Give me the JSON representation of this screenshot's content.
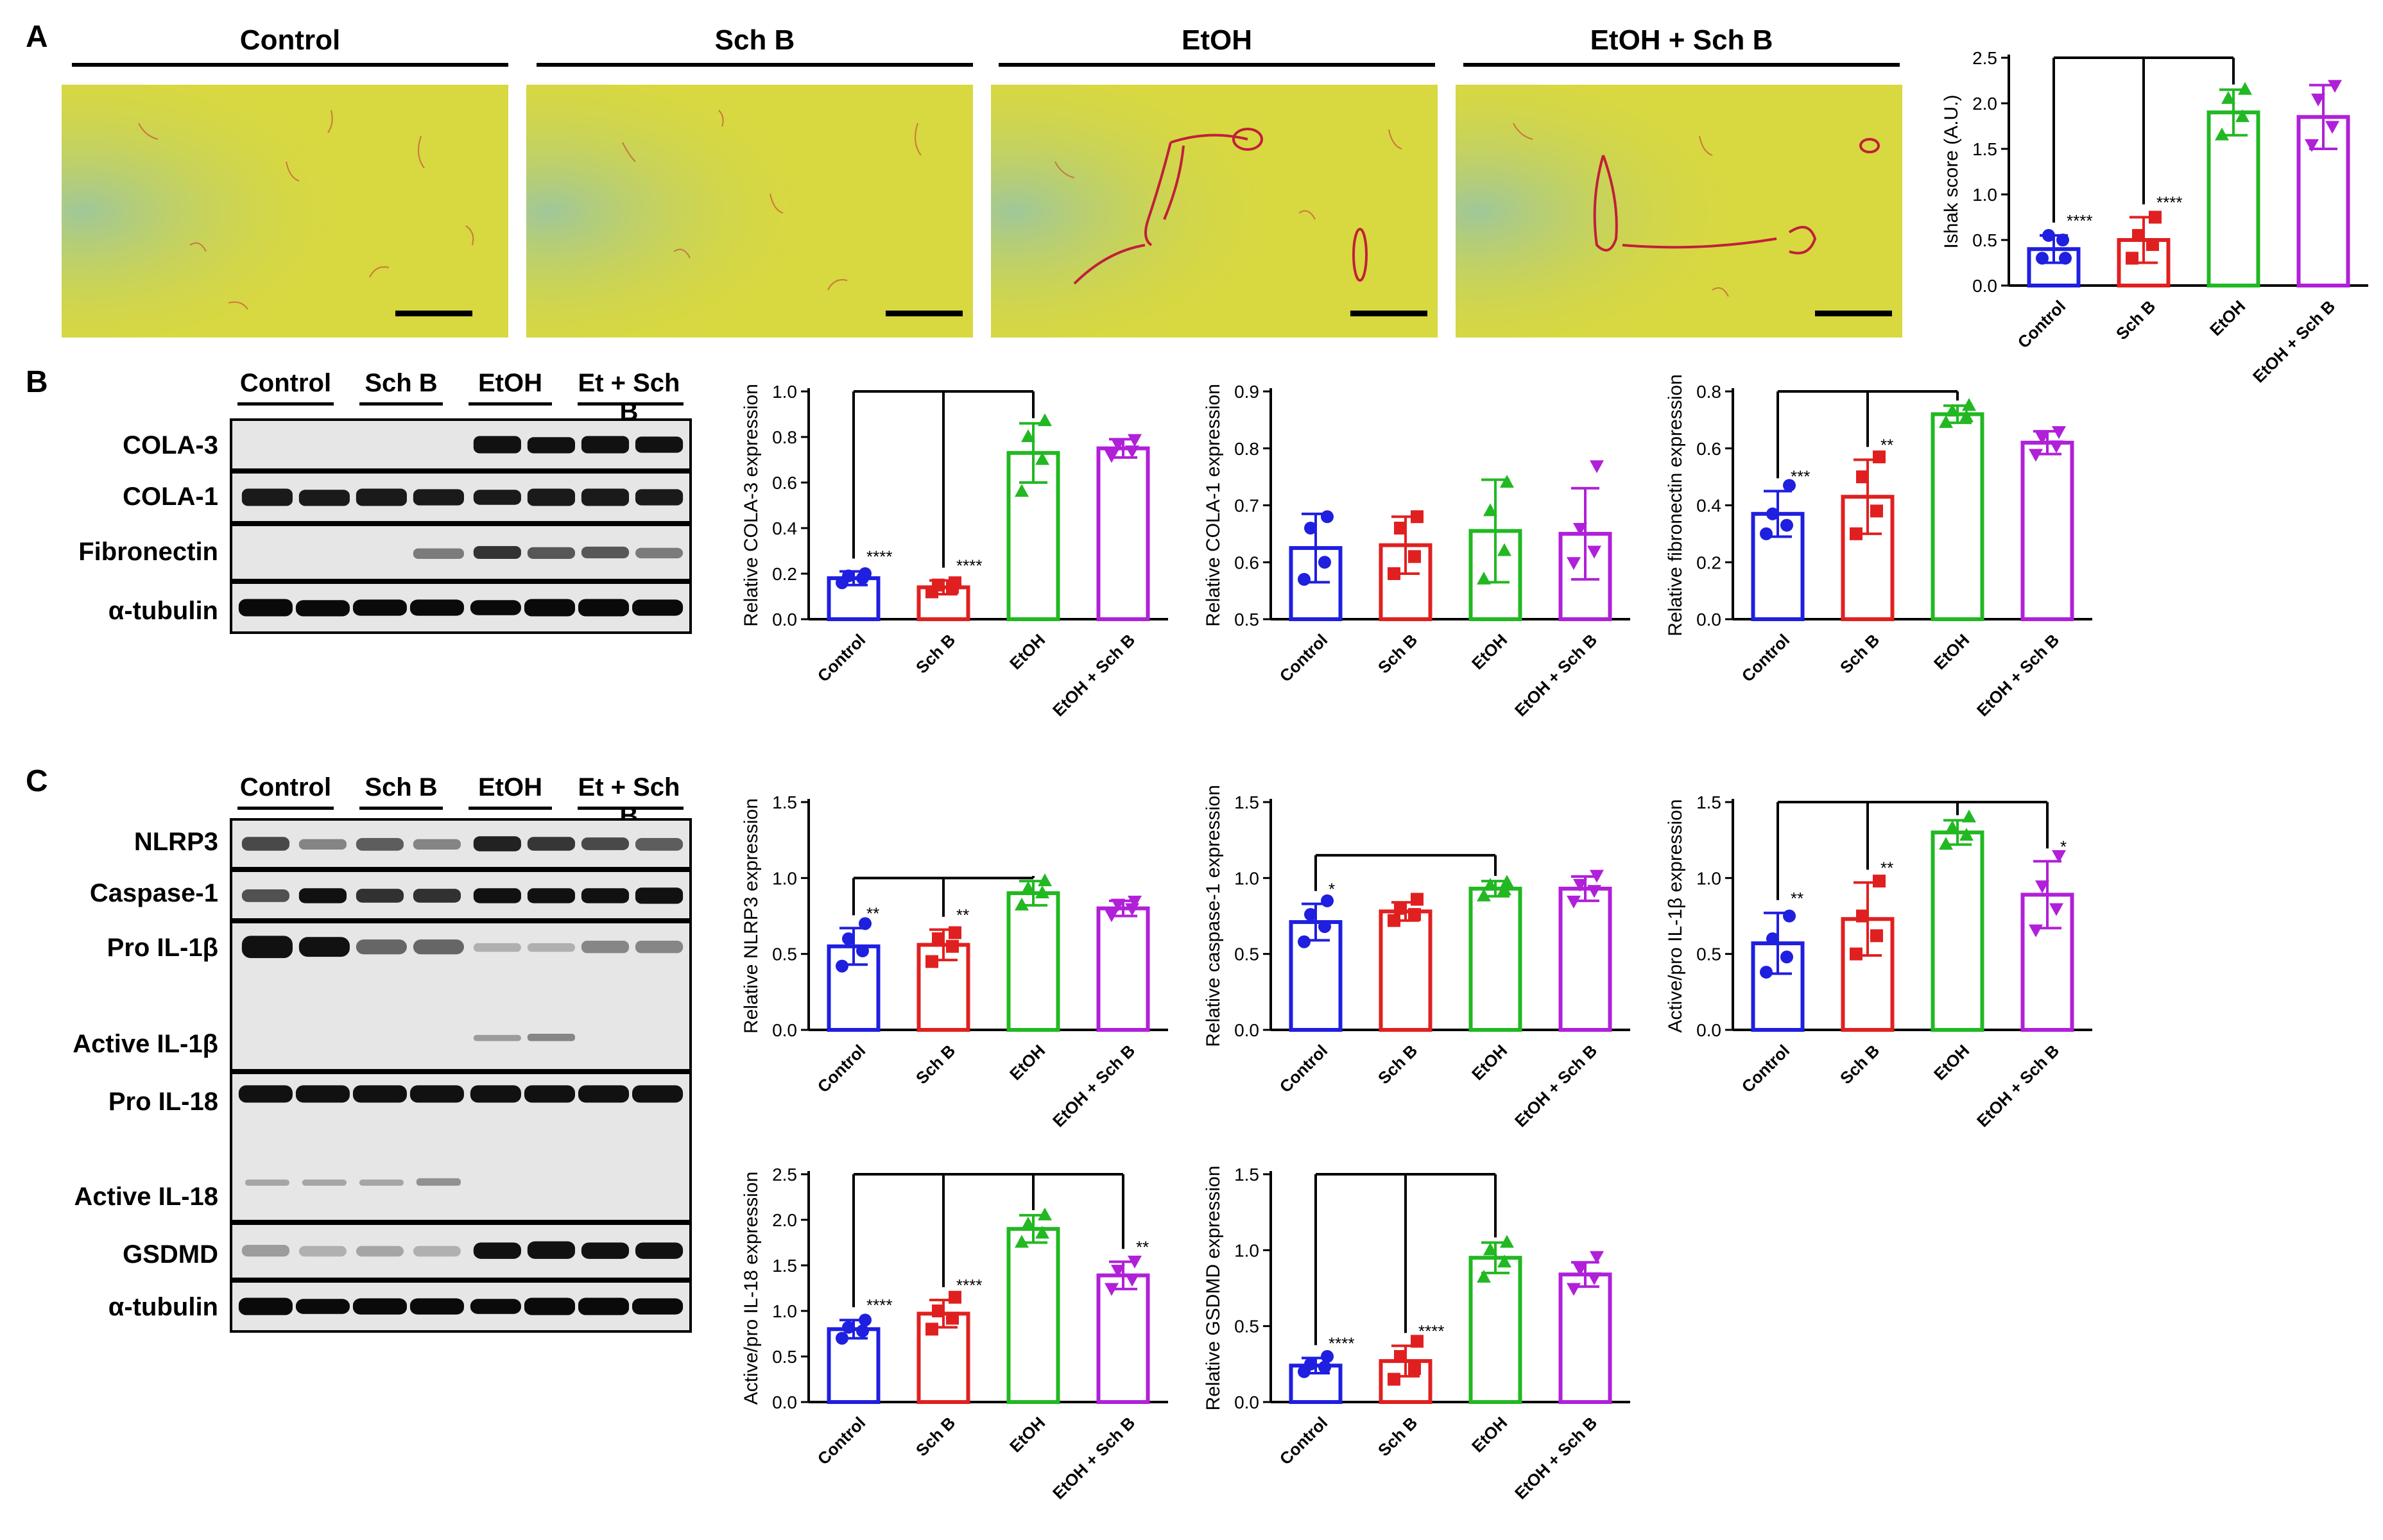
{
  "groups": [
    "Control",
    "Sch B",
    "EtOH",
    "EtOH + Sch B"
  ],
  "colors": {
    "control": "#1f1fe0",
    "schb": "#e02020",
    "etoh": "#22b822",
    "etoh_schb": "#b020d8"
  },
  "panelA": {
    "letter": "A",
    "images": [
      {
        "label": "Control"
      },
      {
        "label": "Sch B"
      },
      {
        "label": "EtOH"
      },
      {
        "label": "EtOH + Sch B"
      }
    ]
  },
  "panelB": {
    "letter": "B",
    "columns": [
      "Control",
      "Sch B",
      "EtOH",
      "Et + Sch B"
    ],
    "rows": [
      "COLA-3",
      "COLA-1",
      "Fibronectin",
      "α-tubulin"
    ]
  },
  "panelC": {
    "letter": "C",
    "columns": [
      "Control",
      "Sch B",
      "EtOH",
      "Et + Sch B"
    ],
    "rows": [
      "NLRP3",
      "Caspase-1",
      "Pro IL-1β",
      "Active IL-1β",
      "Pro IL-18",
      "Active IL-18",
      "GSDMD",
      "α-tubulin"
    ]
  },
  "chart_data": [
    {
      "id": "ishak",
      "type": "bar",
      "ylabel": "Ishak score (A.U.)",
      "ylim": [
        0,
        2.5
      ],
      "yticks": [
        0,
        0.5,
        1.0,
        1.5,
        2.0,
        2.5
      ],
      "ytick_labels": [
        "0.0",
        "0.5",
        "1.0",
        "1.5",
        "2.0",
        "2.5"
      ],
      "categories": [
        "Control",
        "Sch B",
        "EtOH",
        "EtOH + Sch B"
      ],
      "values": [
        0.4,
        0.5,
        1.9,
        1.85
      ],
      "errors": [
        0.15,
        0.25,
        0.25,
        0.35
      ],
      "points": [
        [
          0.3,
          0.5,
          0.55,
          0.3
        ],
        [
          0.3,
          0.45,
          0.55,
          0.75
        ],
        [
          1.65,
          1.85,
          2.05,
          2.15
        ],
        [
          1.55,
          1.75,
          2.05,
          2.2
        ]
      ],
      "markers": [
        "circle",
        "square",
        "triangle",
        "tri-down"
      ],
      "significance": [
        "****",
        "****",
        "",
        ""
      ],
      "bracket": {
        "from": 0,
        "to": 2,
        "mid": 1,
        "y": 2.5
      }
    },
    {
      "id": "cola3",
      "type": "bar",
      "ylabel": "Relative COLA-3 expression",
      "ylim": [
        0,
        1.0
      ],
      "yticks": [
        0,
        0.2,
        0.4,
        0.6,
        0.8,
        1.0
      ],
      "ytick_labels": [
        "0.0",
        "0.2",
        "0.4",
        "0.6",
        "0.8",
        "1.0"
      ],
      "categories": [
        "Control",
        "Sch B",
        "EtOH",
        "EtOH + Sch B"
      ],
      "values": [
        0.18,
        0.14,
        0.73,
        0.75
      ],
      "errors": [
        0.03,
        0.03,
        0.13,
        0.04
      ],
      "points": [
        [
          0.16,
          0.18,
          0.19,
          0.2
        ],
        [
          0.12,
          0.14,
          0.15,
          0.16
        ],
        [
          0.56,
          0.7,
          0.8,
          0.87
        ],
        [
          0.72,
          0.74,
          0.77,
          0.79
        ]
      ],
      "markers": [
        "circle",
        "square",
        "triangle",
        "tri-down"
      ],
      "significance": [
        "****",
        "****",
        "",
        ""
      ],
      "bracket": {
        "from": 0,
        "to": 2,
        "mid": 1,
        "y": 1.0
      }
    },
    {
      "id": "cola1",
      "type": "bar",
      "ylabel": "Relative COLA-1 expression",
      "ylim": [
        0.5,
        0.9
      ],
      "yticks": [
        0.5,
        0.6,
        0.7,
        0.8,
        0.9
      ],
      "ytick_labels": [
        "0.5",
        "0.6",
        "0.7",
        "0.8",
        "0.9"
      ],
      "categories": [
        "Control",
        "Sch B",
        "EtOH",
        "EtOH + Sch B"
      ],
      "values": [
        0.625,
        0.63,
        0.655,
        0.65
      ],
      "errors": [
        0.06,
        0.05,
        0.09,
        0.08
      ],
      "points": [
        [
          0.57,
          0.6,
          0.66,
          0.68
        ],
        [
          0.58,
          0.61,
          0.66,
          0.68
        ],
        [
          0.57,
          0.62,
          0.69,
          0.74
        ],
        [
          0.6,
          0.62,
          0.66,
          0.77
        ]
      ],
      "markers": [
        "circle",
        "square",
        "triangle",
        "tri-down"
      ],
      "significance": [
        "",
        "",
        "",
        ""
      ],
      "bracket": null
    },
    {
      "id": "fibronectin",
      "type": "bar",
      "ylabel": "Relative fibronectin expression",
      "ylim": [
        0,
        0.8
      ],
      "yticks": [
        0,
        0.2,
        0.4,
        0.6,
        0.8
      ],
      "ytick_labels": [
        "0.0",
        "0.2",
        "0.4",
        "0.6",
        "0.8"
      ],
      "categories": [
        "Control",
        "Sch B",
        "EtOH",
        "EtOH + Sch B"
      ],
      "values": [
        0.37,
        0.43,
        0.72,
        0.62
      ],
      "errors": [
        0.08,
        0.13,
        0.03,
        0.04
      ],
      "points": [
        [
          0.3,
          0.33,
          0.37,
          0.47
        ],
        [
          0.3,
          0.38,
          0.5,
          0.57
        ],
        [
          0.69,
          0.71,
          0.73,
          0.75
        ],
        [
          0.58,
          0.61,
          0.64,
          0.66
        ]
      ],
      "markers": [
        "circle",
        "square",
        "triangle",
        "tri-down"
      ],
      "significance": [
        "***",
        "**",
        "",
        ""
      ],
      "bracket": {
        "from": 0,
        "to": 2,
        "mid": 1,
        "y": 0.8
      }
    },
    {
      "id": "nlrp3",
      "type": "bar",
      "ylabel": "Relative NLRP3 expression",
      "ylim": [
        0,
        1.5
      ],
      "yticks": [
        0,
        0.5,
        1.0,
        1.5
      ],
      "ytick_labels": [
        "0.0",
        "0.5",
        "1.0",
        "1.5"
      ],
      "categories": [
        "Control",
        "Sch B",
        "EtOH",
        "EtOH + Sch B"
      ],
      "values": [
        0.55,
        0.56,
        0.9,
        0.8
      ],
      "errors": [
        0.12,
        0.1,
        0.08,
        0.05
      ],
      "points": [
        [
          0.42,
          0.52,
          0.6,
          0.7
        ],
        [
          0.45,
          0.55,
          0.6,
          0.64
        ],
        [
          0.82,
          0.9,
          0.93,
          0.98
        ],
        [
          0.76,
          0.8,
          0.83,
          0.85
        ]
      ],
      "markers": [
        "circle",
        "square",
        "triangle",
        "tri-down"
      ],
      "significance": [
        "**",
        "**",
        "",
        ""
      ],
      "bracket": {
        "from": 0,
        "to": 2,
        "mid": 1,
        "y": 1.0
      }
    },
    {
      "id": "caspase1",
      "type": "bar",
      "ylabel": "Relative caspase-1 expression",
      "ylim": [
        0,
        1.5
      ],
      "yticks": [
        0,
        0.5,
        1.0,
        1.5
      ],
      "ytick_labels": [
        "0.0",
        "0.5",
        "1.0",
        "1.5"
      ],
      "categories": [
        "Control",
        "Sch B",
        "EtOH",
        "EtOH + Sch B"
      ],
      "values": [
        0.71,
        0.78,
        0.93,
        0.93
      ],
      "errors": [
        0.12,
        0.06,
        0.05,
        0.08
      ],
      "points": [
        [
          0.58,
          0.68,
          0.76,
          0.85
        ],
        [
          0.72,
          0.76,
          0.8,
          0.86
        ],
        [
          0.88,
          0.92,
          0.95,
          0.97
        ],
        [
          0.85,
          0.92,
          0.96,
          1.02
        ]
      ],
      "markers": [
        "circle",
        "square",
        "triangle",
        "tri-down"
      ],
      "significance": [
        "*",
        "",
        "",
        ""
      ],
      "bracket": {
        "from": 0,
        "to": 2,
        "mid": null,
        "y": 1.15
      }
    },
    {
      "id": "il1b",
      "type": "bar",
      "ylabel": "Active/pro IL-1β expression",
      "ylim": [
        0,
        1.5
      ],
      "yticks": [
        0,
        0.5,
        1.0,
        1.5
      ],
      "ytick_labels": [
        "0.0",
        "0.5",
        "1.0",
        "1.5"
      ],
      "categories": [
        "Control",
        "Sch B",
        "EtOH",
        "EtOH + Sch B"
      ],
      "values": [
        0.57,
        0.73,
        1.3,
        0.89
      ],
      "errors": [
        0.2,
        0.24,
        0.08,
        0.22
      ],
      "points": [
        [
          0.38,
          0.48,
          0.6,
          0.75
        ],
        [
          0.5,
          0.62,
          0.75,
          0.98
        ],
        [
          1.22,
          1.28,
          1.33,
          1.4
        ],
        [
          0.66,
          0.8,
          0.95,
          1.15
        ]
      ],
      "markers": [
        "circle",
        "square",
        "triangle",
        "tri-down"
      ],
      "significance": [
        "**",
        "**",
        "",
        "*"
      ],
      "bracket": {
        "from": 0,
        "to": 2,
        "mid": 1,
        "y": 1.5,
        "right_to": 3
      }
    },
    {
      "id": "il18",
      "type": "bar",
      "ylabel": "Active/pro IL-18 expression",
      "ylim": [
        0,
        2.5
      ],
      "yticks": [
        0,
        0.5,
        1.0,
        1.5,
        2.0,
        2.5
      ],
      "ytick_labels": [
        "0.0",
        "0.5",
        "1.0",
        "1.5",
        "2.0",
        "2.5"
      ],
      "categories": [
        "Control",
        "Sch B",
        "EtOH",
        "EtOH + Sch B"
      ],
      "values": [
        0.8,
        0.97,
        1.9,
        1.39
      ],
      "errors": [
        0.1,
        0.15,
        0.15,
        0.15
      ],
      "points": [
        [
          0.7,
          0.78,
          0.82,
          0.9
        ],
        [
          0.8,
          0.92,
          1.0,
          1.15
        ],
        [
          1.75,
          1.85,
          1.95,
          2.05
        ],
        [
          1.25,
          1.35,
          1.45,
          1.55
        ]
      ],
      "markers": [
        "circle",
        "square",
        "triangle",
        "tri-down"
      ],
      "significance": [
        "****",
        "****",
        "",
        "**"
      ],
      "bracket": {
        "from": 0,
        "to": 2,
        "mid": 1,
        "y": 2.5,
        "right_to": 3
      }
    },
    {
      "id": "gsdmd",
      "type": "bar",
      "ylabel": "Relative GSDMD expression",
      "ylim": [
        0,
        1.5
      ],
      "yticks": [
        0,
        0.5,
        1.0,
        1.5
      ],
      "ytick_labels": [
        "0.0",
        "0.5",
        "1.0",
        "1.5"
      ],
      "categories": [
        "Control",
        "Sch B",
        "EtOH",
        "EtOH + Sch B"
      ],
      "values": [
        0.24,
        0.27,
        0.95,
        0.84
      ],
      "errors": [
        0.05,
        0.1,
        0.1,
        0.08
      ],
      "points": [
        [
          0.2,
          0.23,
          0.25,
          0.3
        ],
        [
          0.15,
          0.22,
          0.3,
          0.4
        ],
        [
          0.82,
          0.92,
          1.0,
          1.05
        ],
        [
          0.75,
          0.82,
          0.88,
          0.96
        ]
      ],
      "markers": [
        "circle",
        "square",
        "triangle",
        "tri-down"
      ],
      "significance": [
        "****",
        "****",
        "",
        ""
      ],
      "bracket": {
        "from": 0,
        "to": 2,
        "mid": 1,
        "y": 1.5
      }
    }
  ]
}
